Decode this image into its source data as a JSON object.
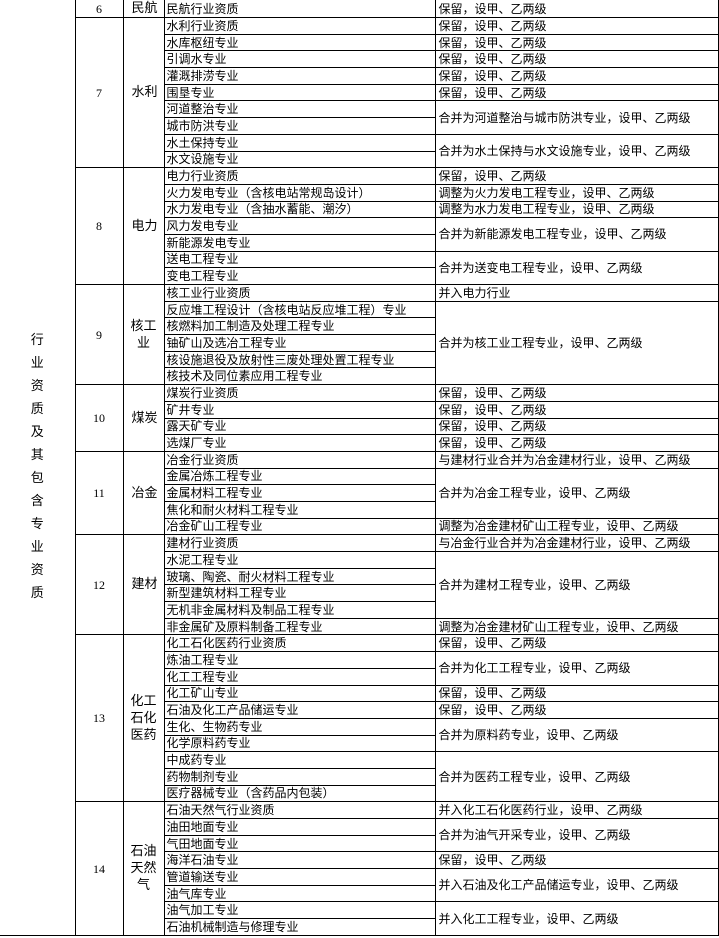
{
  "category": "行业资质及其包含专业资质",
  "groups": [
    {
      "num": "6",
      "industry": "民航",
      "items": [
        {
          "spec": "民航行业资质",
          "note": "保留，设甲、乙两级",
          "span": 1
        }
      ]
    },
    {
      "num": "7",
      "industry": "水利",
      "items": [
        {
          "spec": "水利行业资质",
          "note": "保留，设甲、乙两级",
          "span": 1
        },
        {
          "spec": "水库枢纽专业",
          "note": "保留，设甲、乙两级",
          "span": 1
        },
        {
          "spec": "引调水专业",
          "note": "保留，设甲、乙两级",
          "span": 1
        },
        {
          "spec": "灌溉排涝专业",
          "note": "保留，设甲、乙两级",
          "span": 1
        },
        {
          "spec": "围垦专业",
          "note": "保留，设甲、乙两级",
          "span": 1
        },
        {
          "spec": "河道整治专业",
          "note": "合并为河道整治与城市防洪专业，设甲、乙两级",
          "span": 2
        },
        {
          "spec": "城市防洪专业"
        },
        {
          "spec": "水土保持专业",
          "note": "合并为水土保持与水文设施专业，设甲、乙两级",
          "span": 2
        },
        {
          "spec": "水文设施专业"
        }
      ]
    },
    {
      "num": "8",
      "industry": "电力",
      "items": [
        {
          "spec": "电力行业资质",
          "note": "保留，设甲、乙两级",
          "span": 1
        },
        {
          "spec": "火力发电专业（含核电站常规岛设计）",
          "note": "调整为火力发电工程专业，设甲、乙两级",
          "span": 1
        },
        {
          "spec": "水力发电专业（含抽水蓄能、潮汐）",
          "note": "调整为水力发电工程专业，设甲、乙两级",
          "span": 1
        },
        {
          "spec": "风力发电专业",
          "note": "合并为新能源发电工程专业，设甲、乙两级",
          "span": 2
        },
        {
          "spec": "新能源发电专业"
        },
        {
          "spec": "送电工程专业",
          "note": "合并为送变电工程专业，设甲、乙两级",
          "span": 2
        },
        {
          "spec": "变电工程专业"
        }
      ]
    },
    {
      "num": "9",
      "industry": "核工业",
      "items": [
        {
          "spec": "核工业行业资质",
          "note": "并入电力行业",
          "span": 1
        },
        {
          "spec": "反应堆工程设计（含核电站反应堆工程）专业",
          "note": "合并为核工业工程专业，设甲、乙两级",
          "span": 5
        },
        {
          "spec": "核燃料加工制造及处理工程专业"
        },
        {
          "spec": "铀矿山及选冶工程专业"
        },
        {
          "spec": "核设施退役及放射性三废处理处置工程专业"
        },
        {
          "spec": "核技术及同位素应用工程专业"
        }
      ]
    },
    {
      "num": "10",
      "industry": "煤炭",
      "items": [
        {
          "spec": "煤炭行业资质",
          "note": "保留，设甲、乙两级",
          "span": 1
        },
        {
          "spec": "矿井专业",
          "note": "保留，设甲、乙两级",
          "span": 1
        },
        {
          "spec": "露天矿专业",
          "note": "保留，设甲、乙两级",
          "span": 1
        },
        {
          "spec": "选煤厂专业",
          "note": "保留，设甲、乙两级",
          "span": 1
        }
      ]
    },
    {
      "num": "11",
      "industry": "冶金",
      "items": [
        {
          "spec": "冶金行业资质",
          "note": "与建材行业合并为冶金建材行业，设甲、乙两级",
          "span": 1
        },
        {
          "spec": "金属冶炼工程专业",
          "note": "合并为冶金工程专业，设甲、乙两级",
          "span": 3
        },
        {
          "spec": "金属材料工程专业"
        },
        {
          "spec": "焦化和耐火材料工程专业"
        },
        {
          "spec": "冶金矿山工程专业",
          "note": "调整为冶金建材矿山工程专业，设甲、乙两级",
          "span": 1
        }
      ]
    },
    {
      "num": "12",
      "industry": "建材",
      "items": [
        {
          "spec": "建材行业资质",
          "note": "与冶金行业合并为冶金建材行业，设甲、乙两级",
          "span": 1
        },
        {
          "spec": "水泥工程专业",
          "note": "合并为建材工程专业，设甲、乙两级",
          "span": 4
        },
        {
          "spec": "玻璃、陶瓷、耐火材料工程专业"
        },
        {
          "spec": "新型建筑材料工程专业"
        },
        {
          "spec": "无机非金属材料及制品工程专业"
        },
        {
          "spec": "非金属矿及原料制备工程专业",
          "note": "调整为冶金建材矿山工程专业，设甲、乙两级",
          "span": 1
        }
      ]
    },
    {
      "num": "13",
      "industry": "化工石化医药",
      "items": [
        {
          "spec": "化工石化医药行业资质",
          "note": "保留，设甲、乙两级",
          "span": 1
        },
        {
          "spec": "炼油工程专业",
          "note": "合并为化工工程专业，设甲、乙两级",
          "span": 2
        },
        {
          "spec": "化工工程专业"
        },
        {
          "spec": "化工矿山专业",
          "note": "保留，设甲、乙两级",
          "span": 1
        },
        {
          "spec": "石油及化工产品储运专业",
          "note": "保留，设甲、乙两级",
          "span": 1
        },
        {
          "spec": "生化、生物药专业",
          "note": "合并为原料药专业，设甲、乙两级",
          "span": 2
        },
        {
          "spec": "化学原料药专业"
        },
        {
          "spec": "中成药专业",
          "note": "合并为医药工程专业，设甲、乙两级",
          "span": 3
        },
        {
          "spec": "药物制剂专业"
        },
        {
          "spec": "医疗器械专业（含药品内包装）"
        }
      ]
    },
    {
      "num": "14",
      "industry": "石油天然气",
      "items": [
        {
          "spec": "石油天然气行业资质",
          "note": "并入化工石化医药行业，设甲、乙两级",
          "span": 1
        },
        {
          "spec": "油田地面专业",
          "note": "合并为油气开采专业，设甲、乙两级",
          "span": 2
        },
        {
          "spec": "气田地面专业"
        },
        {
          "spec": "海洋石油专业",
          "note": "保留，设甲、乙两级",
          "span": 1
        },
        {
          "spec": "管道输送专业",
          "note": "并入石油及化工产品储运专业，设甲、乙两级",
          "span": 2
        },
        {
          "spec": "油气库专业"
        },
        {
          "spec": "油气加工专业",
          "note": "并入化工工程专业，设甲、乙两级",
          "span": 2
        },
        {
          "spec": "石油机械制造与修理专业"
        }
      ]
    }
  ]
}
